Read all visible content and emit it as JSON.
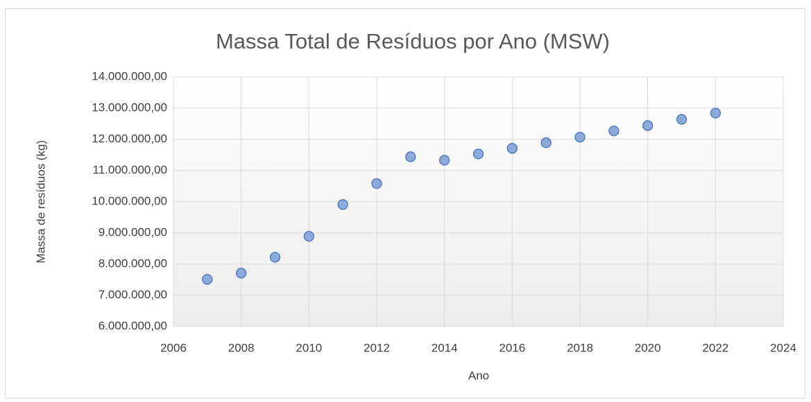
{
  "chart_data": {
    "type": "scatter",
    "title": "Massa Total de Resíduos por Ano (MSW)",
    "x_label": "Ano",
    "y_label": "Massa de resíduos (kg)",
    "series": [
      {
        "name": "MSW",
        "color": "#8eaadb",
        "edge_color": "#4a72b8",
        "x": [
          2007,
          2008,
          2009,
          2010,
          2011,
          2012,
          2013,
          2014,
          2015,
          2016,
          2017,
          2018,
          2019,
          2020,
          2021,
          2022
        ],
        "values": [
          7510000,
          7710000,
          8220000,
          8890000,
          9910000,
          10580000,
          11440000,
          11330000,
          11530000,
          11710000,
          11890000,
          12070000,
          12270000,
          12440000,
          12640000,
          12840000
        ]
      }
    ],
    "xlim": [
      2006,
      2024
    ],
    "xticks": [
      2006,
      2008,
      2010,
      2012,
      2014,
      2016,
      2018,
      2020,
      2022,
      2024
    ],
    "ylim": [
      6000000,
      14000000
    ],
    "yticks": [
      {
        "value": 6000000,
        "label": "6.000.000,00"
      },
      {
        "value": 7000000,
        "label": "7.000.000,00"
      },
      {
        "value": 8000000,
        "label": "8.000.000,00"
      },
      {
        "value": 9000000,
        "label": "9.000.000,00"
      },
      {
        "value": 10000000,
        "label": "10.000.000,00"
      },
      {
        "value": 11000000,
        "label": "11.000.000,00"
      },
      {
        "value": 12000000,
        "label": "12.000.000,00"
      },
      {
        "value": 13000000,
        "label": "13.000.000,00"
      },
      {
        "value": 14000000,
        "label": "14.000.000,00"
      }
    ],
    "grid": true
  }
}
